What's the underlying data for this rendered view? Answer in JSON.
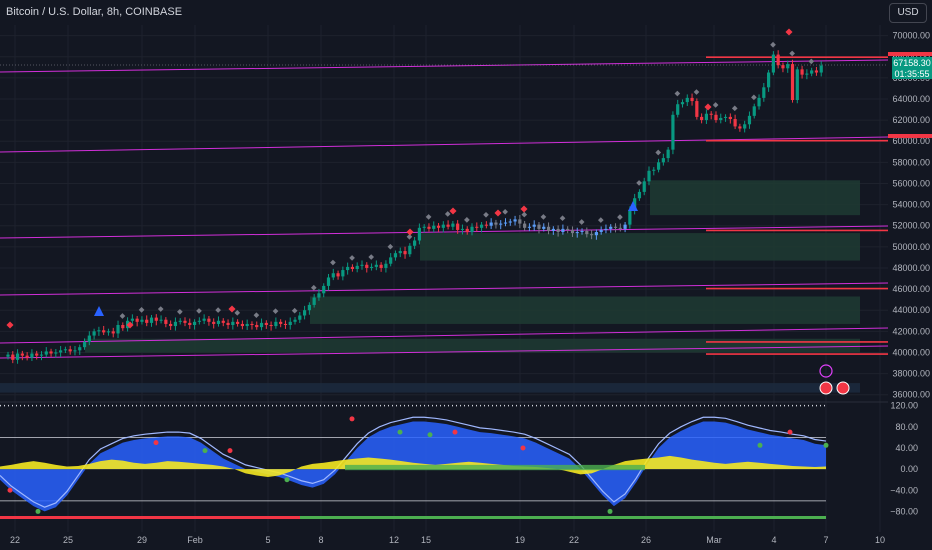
{
  "header": {
    "symbol_title": "Bitcoin / U.S. Dollar, 8h, COINBASE",
    "currency_button": "USD"
  },
  "price_tags": {
    "last_price": "67158.30",
    "countdown": "01:35:55",
    "color": "#089981"
  },
  "chart_data": {
    "type": "candlestick",
    "ylim": [
      35500,
      71000
    ],
    "y_ticks": [
      36000,
      38000,
      40000,
      42000,
      44000,
      46000,
      48000,
      50000,
      52000,
      54000,
      56000,
      58000,
      60000,
      62000,
      64000,
      66000,
      68000,
      70000
    ],
    "y_tick_labels": [
      "36000.00",
      "38000.00",
      "40000.00",
      "42000.00",
      "44000.00",
      "46000.00",
      "48000.00",
      "50000.00",
      "52000.00",
      "54000.00",
      "56000.00",
      "58000.00",
      "60000.00",
      "62000.00",
      "64000.00",
      "66000.00",
      "68000.00",
      "70000.00"
    ],
    "x_ticks": [
      "22",
      "25",
      "29",
      "Feb",
      "5",
      "8",
      "12",
      "15",
      "19",
      "22",
      "26",
      "Mar",
      "4",
      "7",
      "10"
    ],
    "close_series": [
      39800,
      39300,
      39900,
      39700,
      39500,
      39900,
      39700,
      39800,
      40100,
      39900,
      40000,
      40200,
      40300,
      40100,
      40200,
      40500,
      41000,
      41600,
      42000,
      42100,
      41900,
      42000,
      41800,
      42600,
      42300,
      43000,
      43200,
      42900,
      43100,
      42800,
      43300,
      43000,
      43100,
      42700,
      42500,
      42900,
      43000,
      42800,
      42600,
      42900,
      43000,
      43200,
      42900,
      42700,
      43000,
      42800,
      42600,
      42900,
      42700,
      42500,
      42700,
      42600,
      42400,
      42800,
      42600,
      42500,
      42900,
      42700,
      42600,
      42900,
      43100,
      43500,
      44000,
      44500,
      45200,
      45600,
      46300,
      47100,
      47500,
      47200,
      47800,
      48100,
      47900,
      48200,
      48300,
      48000,
      48100,
      48300,
      48000,
      48400,
      49000,
      49400,
      49600,
      49300,
      50100,
      50600,
      51800,
      51900,
      51700,
      52000,
      51800,
      52100,
      51900,
      52200,
      51600,
      51700,
      51400,
      51900,
      51800,
      52100,
      52000,
      52300,
      52100,
      52200,
      52300,
      52400,
      52600,
      52200,
      51800,
      51900,
      52100,
      51700,
      51900,
      51500,
      51700,
      51400,
      51700,
      51600,
      51300,
      51400,
      51500,
      51200,
      51100,
      51400,
      51600,
      51700,
      51900,
      51800,
      51700,
      52100,
      53500,
      54600,
      55200,
      56200,
      57200,
      57300,
      58000,
      58400,
      59200,
      62500,
      63500,
      63700,
      64100,
      63800,
      62300,
      62000,
      62600,
      62500,
      62000,
      62200,
      62300,
      62100,
      61400,
      61200,
      61600,
      62400,
      63300,
      64100,
      65100,
      66500,
      68200,
      67200,
      66900,
      67300,
      63900,
      66800,
      66300,
      66400,
      66700,
      66500,
      67158
    ],
    "horizontal_levels": [
      {
        "price": 67950,
        "color": "#f23645"
      },
      {
        "price": 60050,
        "color": "#f23645"
      },
      {
        "price": 51550,
        "color": "#f23645"
      },
      {
        "price": 46050,
        "color": "#f23645"
      },
      {
        "price": 41000,
        "color": "#f23645"
      },
      {
        "price": 39850,
        "color": "#f23645"
      }
    ],
    "demand_zones": [
      {
        "from": 53000,
        "to": 56300,
        "color": "#1e3b33"
      },
      {
        "from": 48700,
        "to": 51300,
        "color": "#1e3b33"
      },
      {
        "from": 42700,
        "to": 45300,
        "color": "#1e3b33"
      },
      {
        "from": 40000,
        "to": 41300,
        "color": "#1e3b33"
      },
      {
        "from": 36200,
        "to": 37100,
        "color": "#1c2a3e"
      }
    ],
    "oscillator": {
      "y_ticks": [
        120,
        80,
        40,
        0,
        -40,
        -80
      ],
      "y_tick_labels": [
        "120.00",
        "80.00",
        "40.00",
        "0.00",
        "−40.00",
        "−80.00"
      ],
      "ylim": [
        -100,
        125
      ],
      "wave": [
        -20,
        -40,
        -55,
        -70,
        -80,
        -72,
        -50,
        -20,
        10,
        30,
        40,
        50,
        55,
        58,
        60,
        62,
        62,
        60,
        50,
        35,
        20,
        10,
        0,
        -5,
        -10,
        -15,
        -22,
        -30,
        -35,
        -28,
        -10,
        15,
        40,
        60,
        72,
        80,
        85,
        90,
        90,
        88,
        85,
        80,
        75,
        70,
        68,
        65,
        62,
        58,
        50,
        40,
        30,
        20,
        0,
        -25,
        -50,
        -70,
        -55,
        -25,
        10,
        40,
        60,
        72,
        82,
        90,
        90,
        88,
        82,
        75,
        70,
        65,
        62,
        58,
        55,
        48,
        45
      ],
      "wave_color": "#2962ff",
      "money_flow": [
        5,
        8,
        12,
        15,
        12,
        8,
        5,
        6,
        10,
        15,
        18,
        16,
        12,
        10,
        12,
        15,
        14,
        12,
        10,
        8,
        5,
        0,
        -8,
        -12,
        -15,
        -12,
        -5,
        5,
        10,
        12,
        15,
        18,
        20,
        22,
        20,
        18,
        15,
        12,
        10,
        8,
        10,
        12,
        14,
        12,
        10,
        8,
        6,
        5,
        4,
        2,
        0,
        -5,
        -10,
        -8,
        0,
        8,
        15,
        18,
        20,
        22,
        25,
        22,
        18,
        15,
        12,
        10,
        12,
        14,
        12,
        10,
        8,
        6,
        5,
        4,
        5
      ],
      "money_flow_color": "#f5e821"
    }
  }
}
